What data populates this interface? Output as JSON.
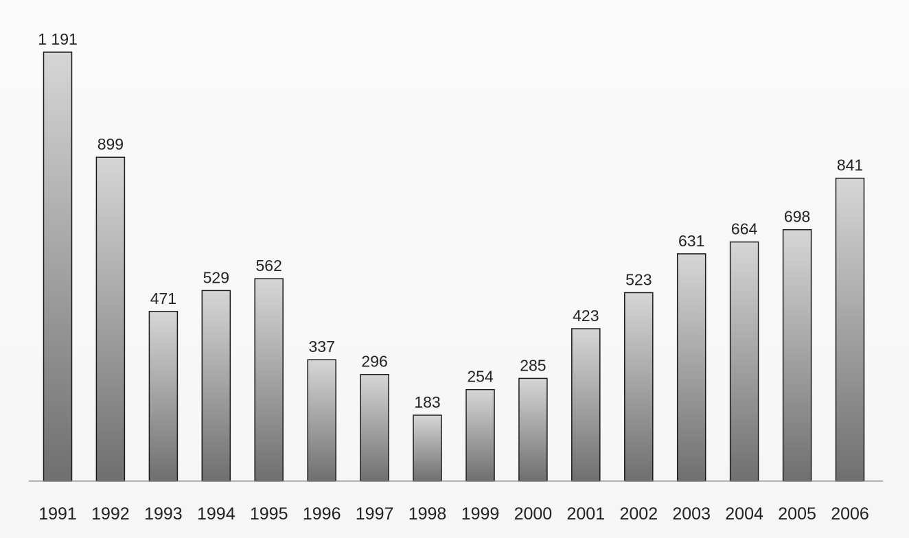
{
  "chart_data": {
    "type": "bar",
    "title": "",
    "xlabel": "",
    "ylabel": "",
    "grid": false,
    "legend": "none",
    "ylim": [
      0,
      1191
    ],
    "categories": [
      "1991",
      "1992",
      "1993",
      "1994",
      "1995",
      "1996",
      "1997",
      "1998",
      "1999",
      "2000",
      "2001",
      "2002",
      "2003",
      "2004",
      "2005",
      "2006"
    ],
    "values": [
      1191,
      899,
      471,
      529,
      562,
      337,
      296,
      183,
      254,
      285,
      423,
      523,
      631,
      664,
      698,
      841
    ],
    "value_labels": [
      "1 191",
      "899",
      "471",
      "529",
      "562",
      "337",
      "296",
      "183",
      "254",
      "285",
      "423",
      "523",
      "631",
      "664",
      "698",
      "841"
    ],
    "colors": {
      "bar_top": "#d6d6d6",
      "bar_bottom": "#6f6f6f",
      "bar_outline": "#1a1a1a",
      "baseline": "#8a8a8a",
      "text": "#222222"
    }
  }
}
